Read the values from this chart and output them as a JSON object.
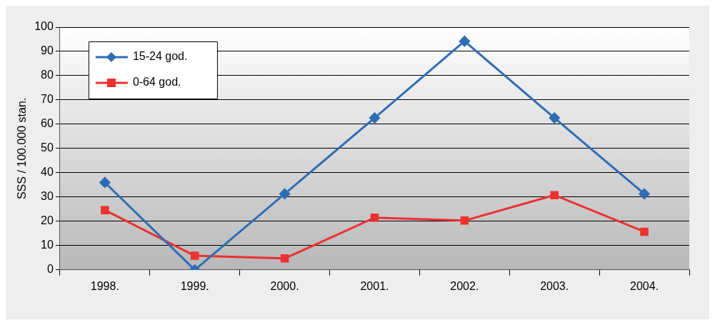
{
  "chart_data": {
    "type": "line",
    "ylabel": "SSS / 100.000 stan.",
    "categories": [
      "1998.",
      "1999.",
      "2000.",
      "2001.",
      "2002.",
      "2003.",
      "2004."
    ],
    "series": [
      {
        "name": "15-24 god.",
        "color": "#2e6db4",
        "marker": "diamond",
        "values": [
          36,
          0,
          31.3,
          62.6,
          94.2,
          62.6,
          31.3
        ]
      },
      {
        "name": "0-64 god.",
        "color": "#ee3030",
        "marker": "square",
        "values": [
          24.6,
          5.8,
          4.7,
          21.5,
          20.3,
          30.8,
          15.7
        ]
      }
    ],
    "ylim": [
      0,
      100
    ],
    "yticks": [
      0,
      10,
      20,
      30,
      40,
      50,
      60,
      70,
      80,
      90,
      100
    ],
    "grid": "y",
    "legend": "top left",
    "line_style": "solid"
  }
}
